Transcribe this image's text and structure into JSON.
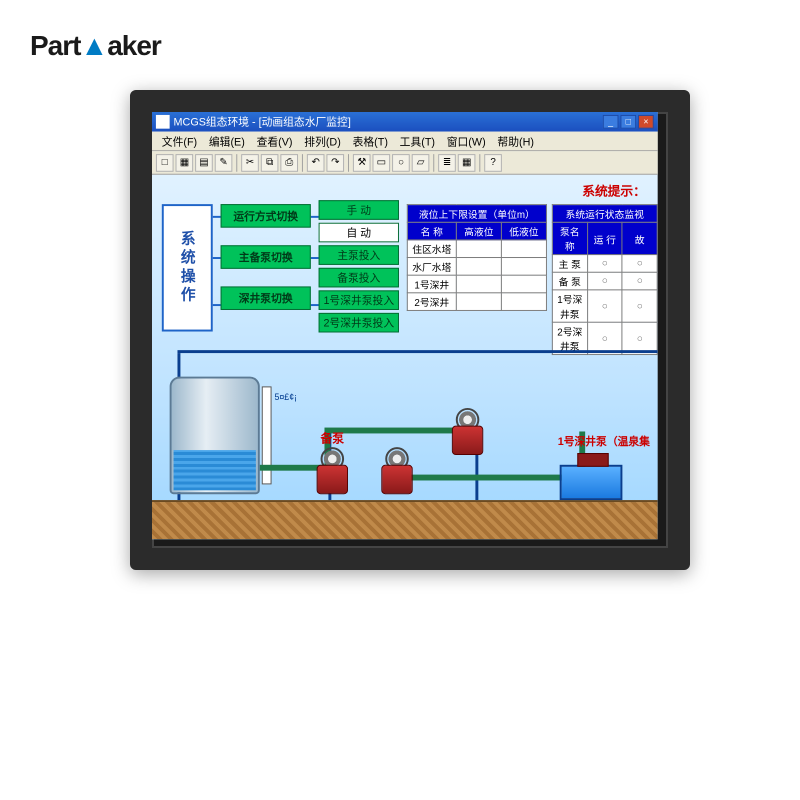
{
  "brand": {
    "part1": "Part",
    "part2": "aker"
  },
  "window": {
    "title": "MCGS组态环境 - [动画组态水厂监控]",
    "menus": [
      "文件(F)",
      "编辑(E)",
      "查看(V)",
      "排列(D)",
      "表格(T)",
      "工具(T)",
      "窗口(W)",
      "帮助(H)"
    ],
    "toolbar_icons": [
      "□",
      "▦",
      "▤",
      "✎",
      "|",
      "✂",
      "⧉",
      "⎙",
      "|",
      "↶",
      "↷",
      "|",
      "⚒",
      "▭",
      "○",
      "▱",
      "|",
      "≣",
      "▦",
      "|",
      "?"
    ]
  },
  "sys_prompt": "系统提示：",
  "ops_title": "系统操作",
  "labels": [
    "运行方式切换",
    "主备泵切换",
    "深井泵切换"
  ],
  "buttons": [
    {
      "text": "手  动",
      "selected": false
    },
    {
      "text": "自  动",
      "selected": true
    },
    {
      "text": "主泵投入",
      "selected": false
    },
    {
      "text": "备泵投入",
      "selected": false
    },
    {
      "text": "1号深井泵投入",
      "selected": false
    },
    {
      "text": "2号深井泵投入",
      "selected": false
    }
  ],
  "table1": {
    "header_span": "液位上下限设置（单位m）",
    "cols": [
      "名  称",
      "高液位",
      "低液位"
    ],
    "rows": [
      "住区水塔",
      "水厂水塔",
      "1号深井",
      "2号深井"
    ]
  },
  "table2": {
    "header_span": "系统运行状态监视",
    "cols": [
      "泵名称",
      "运 行",
      "故"
    ],
    "rows": [
      "主  泵",
      "备  泵",
      "1号深井泵",
      "2号深井泵"
    ]
  },
  "diagram": {
    "pump_labels": {
      "backup": "备泵",
      "well": "1号深井泵（温泉集"
    },
    "colors": {
      "sky_top": "#eaf6ff",
      "sky_bot": "#9ed6ff",
      "green_btn": "#00c25a",
      "blue_frame": "#1e64c8",
      "table_header": "#0000cc",
      "pipe": "#1f7a4a",
      "pump_red": "#c33",
      "ground": "#c08a4a"
    }
  }
}
